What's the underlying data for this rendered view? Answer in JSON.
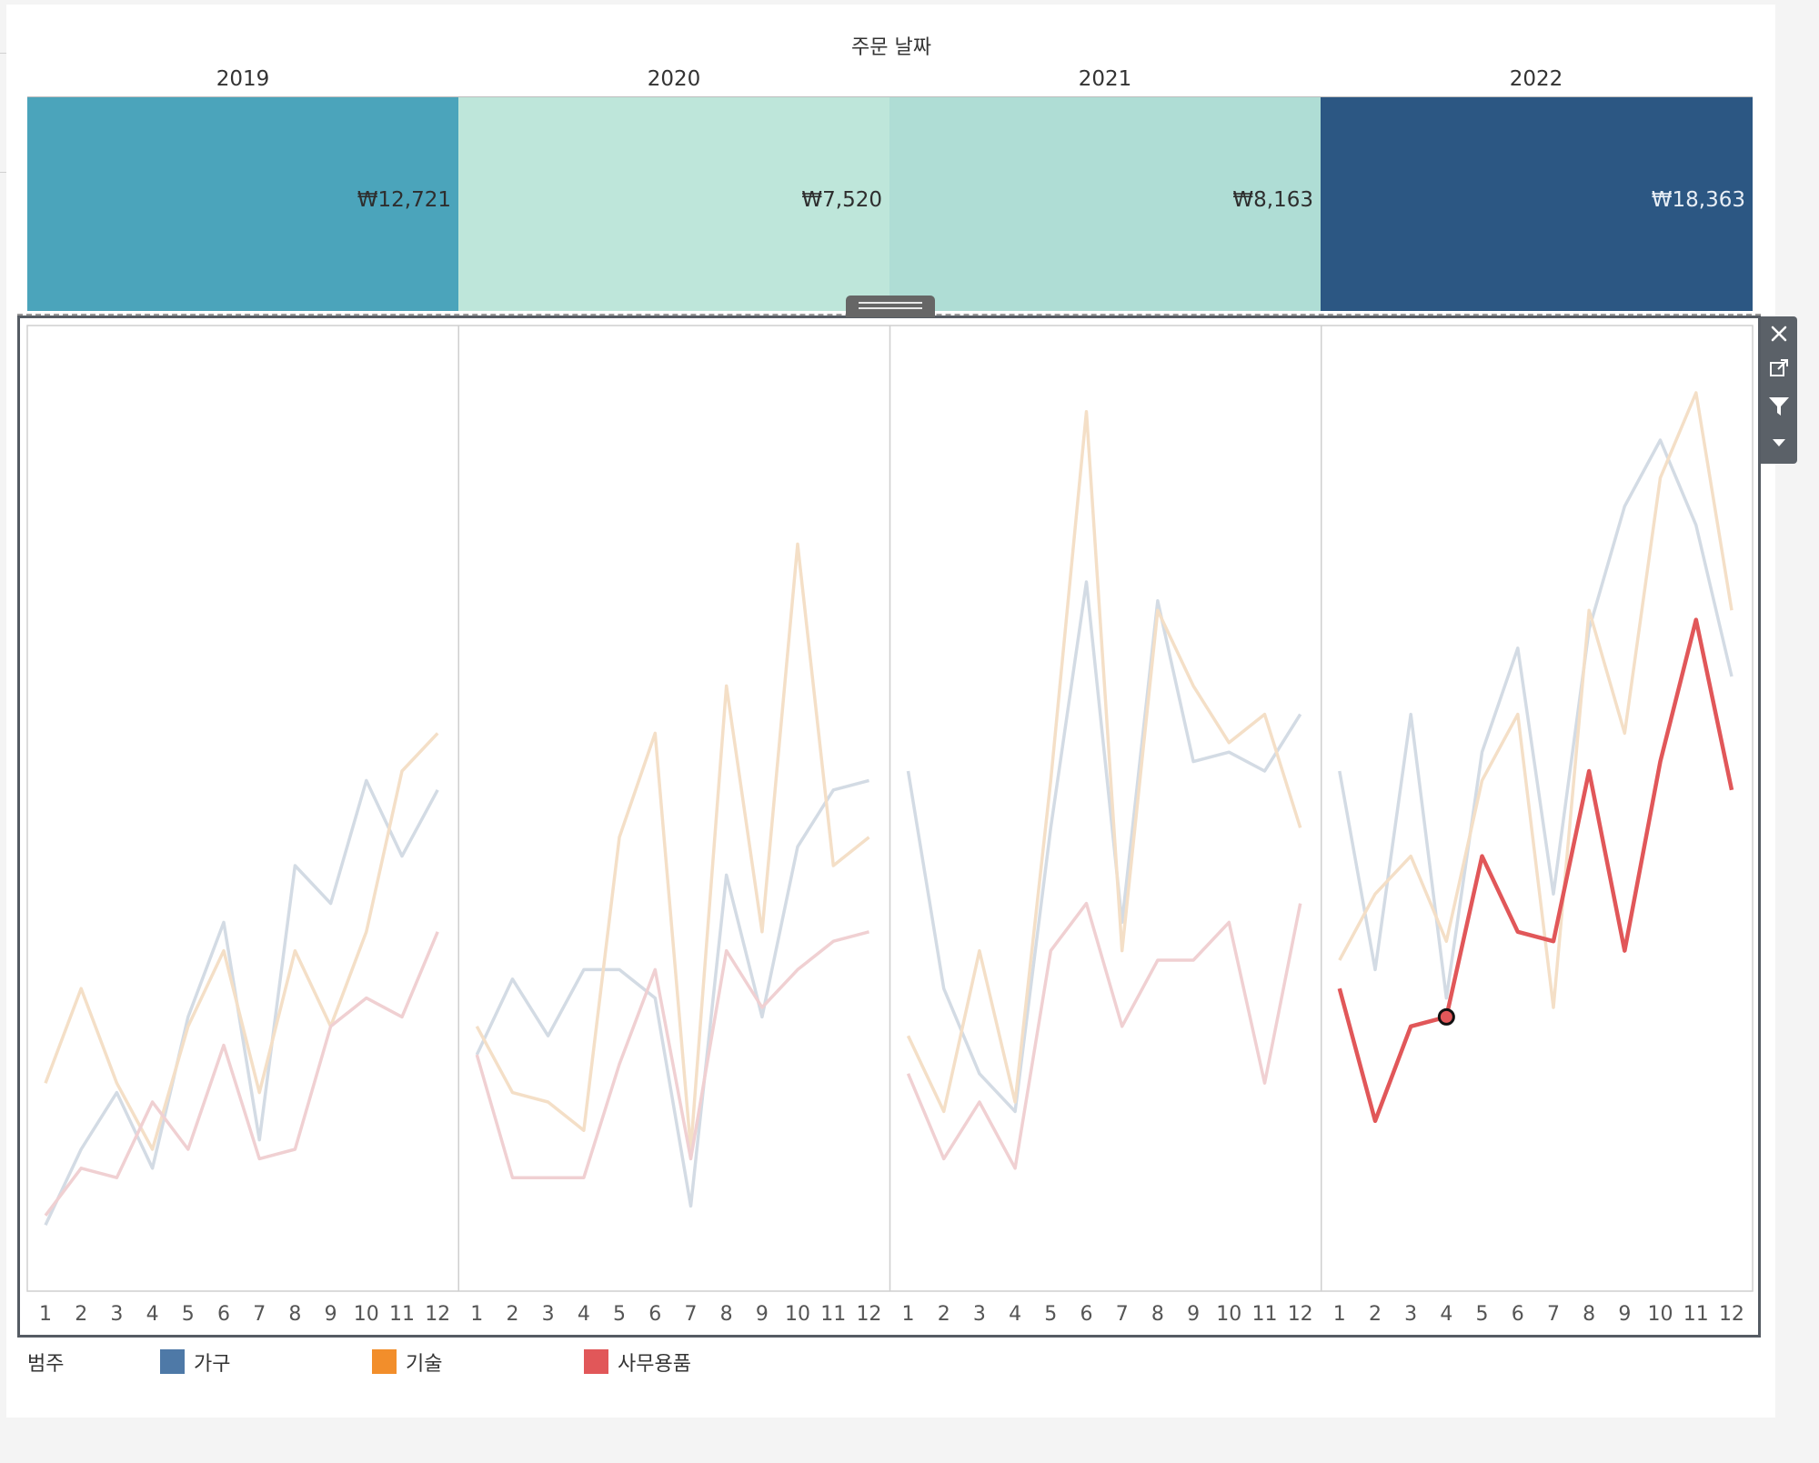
{
  "header": {
    "title": "주문 날짜",
    "years": [
      {
        "label": "2019",
        "value": "₩12,721",
        "color": "#4ba4bb",
        "text_color": "#2e2e2e"
      },
      {
        "label": "2020",
        "value": "₩7,520",
        "color": "#bee6da",
        "text_color": "#2e2e2e"
      },
      {
        "label": "2021",
        "value": "₩8,163",
        "color": "#afddd5",
        "text_color": "#2e2e2e"
      },
      {
        "label": "2022",
        "value": "₩18,363",
        "color": "#2c5783",
        "text_color": "#e8eef5"
      }
    ]
  },
  "toolbar": {
    "icons": [
      "close-icon",
      "open-external-icon",
      "filter-icon",
      "dropdown-icon"
    ]
  },
  "legend": {
    "title": "범주",
    "items": [
      {
        "label": "가구",
        "color": "#4e79a7"
      },
      {
        "label": "기술",
        "color": "#f28e2b"
      },
      {
        "label": "사무용품",
        "color": "#e15759"
      }
    ]
  },
  "chart_data": {
    "type": "line",
    "title": "",
    "x_ticks": [
      "1",
      "2",
      "3",
      "4",
      "5",
      "6",
      "7",
      "8",
      "9",
      "10",
      "11",
      "12"
    ],
    "panels": [
      "2019",
      "2020",
      "2021",
      "2022"
    ],
    "ylim": [
      0,
      100
    ],
    "highlighted_panel": "2022",
    "highlighted_series": "사무용품",
    "selected_point": {
      "panel": "2022",
      "month": 4,
      "series": "사무용품"
    },
    "series": [
      {
        "name": "가구",
        "color": "#4e79a7",
        "values": {
          "2019": [
            7,
            15,
            21,
            13,
            29,
            39,
            16,
            45,
            41,
            54,
            46,
            53
          ],
          "2020": [
            25,
            33,
            27,
            34,
            34,
            31,
            9,
            44,
            29,
            47,
            53,
            54
          ],
          "2021": [
            55,
            32,
            23,
            19,
            49,
            75,
            39,
            73,
            56,
            57,
            55,
            61
          ],
          "2022": [
            55,
            34,
            61,
            31,
            57,
            68,
            42,
            70,
            83,
            90,
            81,
            65
          ]
        }
      },
      {
        "name": "기술",
        "color": "#f28e2b",
        "values": {
          "2019": [
            22,
            32,
            22,
            15,
            28,
            36,
            21,
            36,
            28,
            38,
            55,
            59
          ],
          "2020": [
            28,
            21,
            20,
            17,
            48,
            59,
            15,
            64,
            38,
            79,
            45,
            48
          ],
          "2021": [
            27,
            19,
            36,
            20,
            54,
            93,
            36,
            72,
            64,
            58,
            61,
            49
          ],
          "2022": [
            35,
            42,
            46,
            37,
            54,
            61,
            30,
            72,
            59,
            86,
            95,
            72
          ]
        }
      },
      {
        "name": "사무용품",
        "color": "#e15759",
        "values": {
          "2019": [
            8,
            13,
            12,
            20,
            15,
            26,
            14,
            15,
            28,
            31,
            29,
            38
          ],
          "2020": [
            25,
            12,
            12,
            12,
            24,
            34,
            14,
            36,
            30,
            34,
            37,
            38
          ],
          "2021": [
            23,
            14,
            20,
            13,
            36,
            41,
            28,
            35,
            35,
            39,
            22,
            41
          ],
          "2022": [
            32,
            18,
            28,
            29,
            46,
            38,
            37,
            55,
            36,
            56,
            71,
            53
          ]
        }
      }
    ]
  }
}
